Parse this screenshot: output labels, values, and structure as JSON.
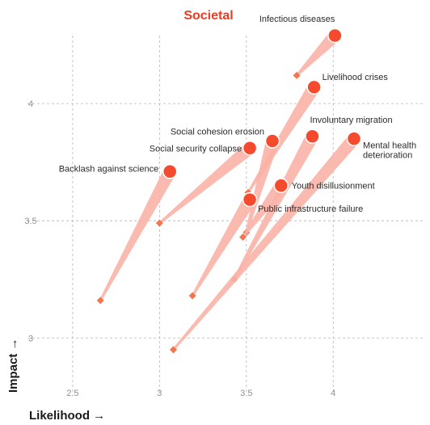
{
  "chart_data": {
    "type": "scatter",
    "title": "Societal",
    "xlabel": "Likelihood →",
    "ylabel": "Impact →",
    "xlim": [
      2.24,
      4.52
    ],
    "ylim": [
      2.77,
      4.29
    ],
    "xticks": [
      2.5,
      3,
      3.5,
      4
    ],
    "yticks": [
      3,
      3.5,
      4
    ],
    "grid": true,
    "colors": {
      "title": "#ee3b22",
      "point": "#f44a2e",
      "trail_start": "#f4764f",
      "trail": "#fbb3a6",
      "grid": "#b5b5b5"
    },
    "series": [
      {
        "name": "Infectious diseases",
        "from": [
          3.79,
          4.12
        ],
        "to": [
          4.01,
          4.29
        ]
      },
      {
        "name": "Livelihood crises",
        "from": [
          3.51,
          3.62
        ],
        "to": [
          3.89,
          4.07
        ]
      },
      {
        "name": "Involuntary migration",
        "from": [
          3.43,
          3.25
        ],
        "to": [
          3.88,
          3.86
        ]
      },
      {
        "name": "Mental health deterioration",
        "from": [
          3.08,
          2.95
        ],
        "to": [
          4.12,
          3.85
        ]
      },
      {
        "name": "Social cohesion erosion",
        "from": [
          3.5,
          3.45
        ],
        "to": [
          3.65,
          3.84
        ]
      },
      {
        "name": "Social security collapse",
        "from": [
          3.0,
          3.49
        ],
        "to": [
          3.52,
          3.81
        ]
      },
      {
        "name": "Backlash against science",
        "from": [
          2.66,
          3.16
        ],
        "to": [
          3.06,
          3.71
        ]
      },
      {
        "name": "Youth disillusionment",
        "from": [
          3.48,
          3.43
        ],
        "to": [
          3.7,
          3.65
        ]
      },
      {
        "name": "Public infrastructure failure",
        "from": [
          3.19,
          3.18
        ],
        "to": [
          3.52,
          3.59
        ]
      }
    ]
  }
}
